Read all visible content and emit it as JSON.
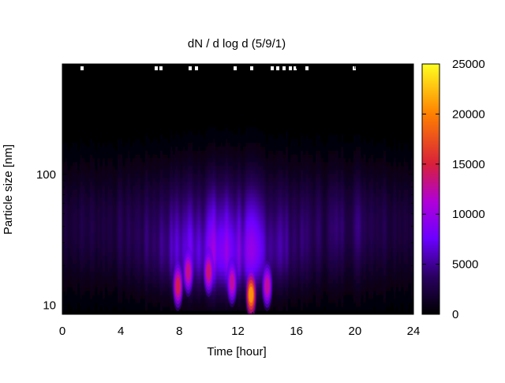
{
  "chart_data": {
    "type": "heatmap",
    "title": "dN / d log d (5/9/1)",
    "xlabel": "Time [hour]",
    "ylabel": "Particle size [nm]",
    "xlim": [
      0,
      24
    ],
    "x_ticks": [
      "0",
      "4",
      "8",
      "12",
      "16",
      "20",
      "24"
    ],
    "x_tick_values": [
      0,
      4,
      8,
      12,
      16,
      20,
      24
    ],
    "y_scale": "log",
    "ylim": [
      8.5,
      700
    ],
    "y_ticks": [
      "10",
      "100"
    ],
    "y_tick_values": [
      10,
      100
    ],
    "colorbar": {
      "range": [
        0,
        25000
      ],
      "ticks": [
        "0",
        "5000",
        "10000",
        "15000",
        "20000",
        "25000"
      ],
      "tick_values": [
        0,
        5000,
        10000,
        15000,
        20000,
        25000
      ],
      "palette": "black-blue-violet-red-orange-yellow"
    },
    "grid": false,
    "hotspots": [
      {
        "hour": 7.9,
        "size_nm": 14,
        "value": 16000
      },
      {
        "hour": 8.6,
        "size_nm": 18,
        "value": 14500
      },
      {
        "hour": 10.0,
        "size_nm": 18,
        "value": 15000
      },
      {
        "hour": 11.6,
        "size_nm": 15,
        "value": 14000
      },
      {
        "hour": 12.9,
        "size_nm": 12,
        "value": 23000
      },
      {
        "hour": 14.0,
        "size_nm": 14,
        "value": 14000
      }
    ]
  }
}
